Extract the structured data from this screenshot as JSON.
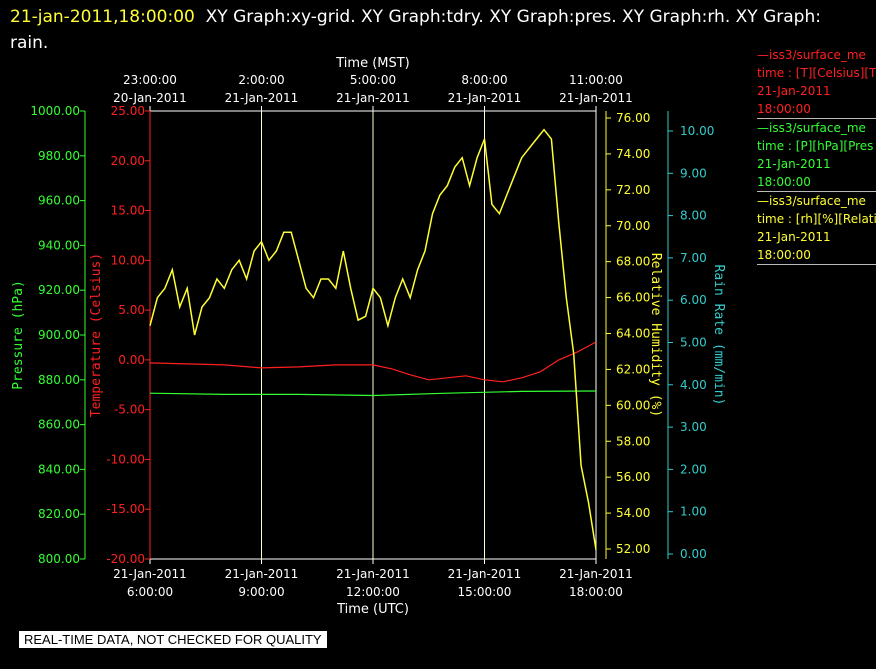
{
  "header": {
    "timestamp": "21-jan-2011,18:00:00",
    "title": "XY Graph:xy-grid.  XY Graph:tdry.  XY Graph:pres.  XY Graph:rh.  XY Graph: rain."
  },
  "legend": [
    {
      "line1": "iss3/surface_me",
      "line2": "time : [T][Celsius][T",
      "line3": "21-Jan-2011",
      "line4": "18:00:00",
      "color": "#ff2020"
    },
    {
      "line1": "iss3/surface_me",
      "line2": "time : [P][hPa][Pres",
      "line3": "21-Jan-2011",
      "line4": "18:00:00",
      "color": "#33ff33"
    },
    {
      "line1": "iss3/surface_me",
      "line2": "time : [rh][%][Relati",
      "line3": "21-Jan-2011",
      "line4": "18:00:00",
      "color": "#ffff33"
    }
  ],
  "warning": "REAL-TIME DATA, NOT CHECKED FOR QUALITY",
  "chart_data": {
    "type": "line",
    "xlabel_bottom": "Time (UTC)",
    "xlabel_top": "Time (MST)",
    "x_ticks_bottom": [
      {
        "date": "21-Jan-2011",
        "time": "6:00:00"
      },
      {
        "date": "21-Jan-2011",
        "time": "9:00:00"
      },
      {
        "date": "21-Jan-2011",
        "time": "12:00:00"
      },
      {
        "date": "21-Jan-2011",
        "time": "15:00:00"
      },
      {
        "date": "21-Jan-2011",
        "time": "18:00:00"
      }
    ],
    "x_ticks_top": [
      {
        "time": "23:00:00",
        "date": "20-Jan-2011"
      },
      {
        "time": "2:00:00",
        "date": "21-Jan-2011"
      },
      {
        "time": "5:00:00",
        "date": "21-Jan-2011"
      },
      {
        "time": "8:00:00",
        "date": "21-Jan-2011"
      },
      {
        "time": "11:00:00",
        "date": "21-Jan-2011"
      }
    ],
    "x_range_utc_hours": [
      6,
      18
    ],
    "grid": true,
    "axes": {
      "pressure": {
        "label": "Pressure (hPa)",
        "color": "#33ff33",
        "range": [
          800,
          1000
        ],
        "ticks": [
          "1000.00",
          "980.00",
          "960.00",
          "940.00",
          "920.00",
          "900.00",
          "880.00",
          "860.00",
          "840.00",
          "820.00",
          "800.00"
        ]
      },
      "temperature": {
        "label": "Temperature (Celsius)",
        "color": "#ff2020",
        "range": [
          -20,
          25
        ],
        "ticks": [
          "25.00",
          "20.00",
          "15.00",
          "10.00",
          "5.00",
          "0.00",
          "-5.00",
          "-10.00",
          "-15.00",
          "-20.00"
        ]
      },
      "rh": {
        "label": "Relative Humidity (%)",
        "color": "#ffff33",
        "range": [
          52,
          76
        ],
        "ticks": [
          "76.00",
          "74.00",
          "72.00",
          "70.00",
          "68.00",
          "66.00",
          "64.00",
          "62.00",
          "60.00",
          "58.00",
          "56.00",
          "54.00",
          "52.00"
        ]
      },
      "rain": {
        "label": "Rain Rate (mm/min)",
        "color": "#33cccc",
        "range": [
          0,
          10
        ],
        "ticks": [
          "10.00",
          "9.00",
          "8.00",
          "7.00",
          "6.00",
          "5.00",
          "4.00",
          "3.00",
          "2.00",
          "1.00",
          "0.00"
        ]
      }
    },
    "series": [
      {
        "name": "Temperature",
        "axis": "temperature",
        "color": "#ff2020",
        "x": [
          6.0,
          7.0,
          8.0,
          9.0,
          10.0,
          11.0,
          12.0,
          12.5,
          13.0,
          13.5,
          14.0,
          14.5,
          15.0,
          15.5,
          16.0,
          16.5,
          17.0,
          17.5,
          18.0
        ],
        "y": [
          -0.3,
          -0.4,
          -0.5,
          -0.8,
          -0.7,
          -0.5,
          -0.5,
          -0.9,
          -1.5,
          -2.0,
          -1.8,
          -1.6,
          -2.0,
          -2.2,
          -1.8,
          -1.2,
          0.0,
          0.8,
          1.8
        ]
      },
      {
        "name": "Pressure",
        "axis": "pressure",
        "color": "#33ff33",
        "x": [
          6.0,
          8.0,
          10.0,
          12.0,
          14.0,
          16.0,
          18.0
        ],
        "y": [
          874.0,
          873.5,
          873.5,
          873.0,
          874.0,
          874.8,
          875.0
        ]
      },
      {
        "name": "Relative Humidity",
        "axis": "rh",
        "color": "#ffff33",
        "x": [
          6.0,
          6.2,
          6.4,
          6.6,
          6.8,
          7.0,
          7.2,
          7.4,
          7.6,
          7.8,
          8.0,
          8.2,
          8.4,
          8.6,
          8.8,
          9.0,
          9.2,
          9.4,
          9.6,
          9.8,
          10.0,
          10.2,
          10.4,
          10.6,
          10.8,
          11.0,
          11.2,
          11.4,
          11.6,
          11.8,
          12.0,
          12.2,
          12.4,
          12.6,
          12.8,
          13.0,
          13.2,
          13.4,
          13.6,
          13.8,
          14.0,
          14.2,
          14.4,
          14.6,
          14.8,
          15.0,
          15.2,
          15.4,
          15.6,
          15.8,
          16.0,
          16.2,
          16.4,
          16.6,
          16.8,
          17.0,
          17.2,
          17.4,
          17.6,
          17.8,
          18.0
        ],
        "y": [
          64.5,
          66.0,
          66.5,
          67.5,
          65.5,
          66.5,
          64.0,
          65.5,
          66.0,
          67.0,
          66.5,
          67.5,
          68.0,
          67.0,
          68.5,
          69.0,
          68.0,
          68.5,
          69.5,
          69.5,
          68.0,
          66.5,
          66.0,
          67.0,
          67.0,
          66.5,
          68.5,
          66.5,
          64.8,
          65.0,
          66.5,
          66.0,
          64.5,
          66.0,
          67.0,
          66.0,
          67.5,
          68.5,
          70.5,
          71.5,
          72.0,
          73.0,
          73.5,
          72.0,
          73.5,
          74.5,
          71.0,
          70.5,
          71.5,
          72.5,
          73.5,
          74.0,
          74.5,
          75.0,
          74.5,
          70.0,
          66.0,
          63.0,
          57.0,
          55.0,
          52.5
        ]
      },
      {
        "name": "Rain Rate",
        "axis": "rain",
        "color": "#33cccc",
        "x": [],
        "y": []
      }
    ]
  }
}
